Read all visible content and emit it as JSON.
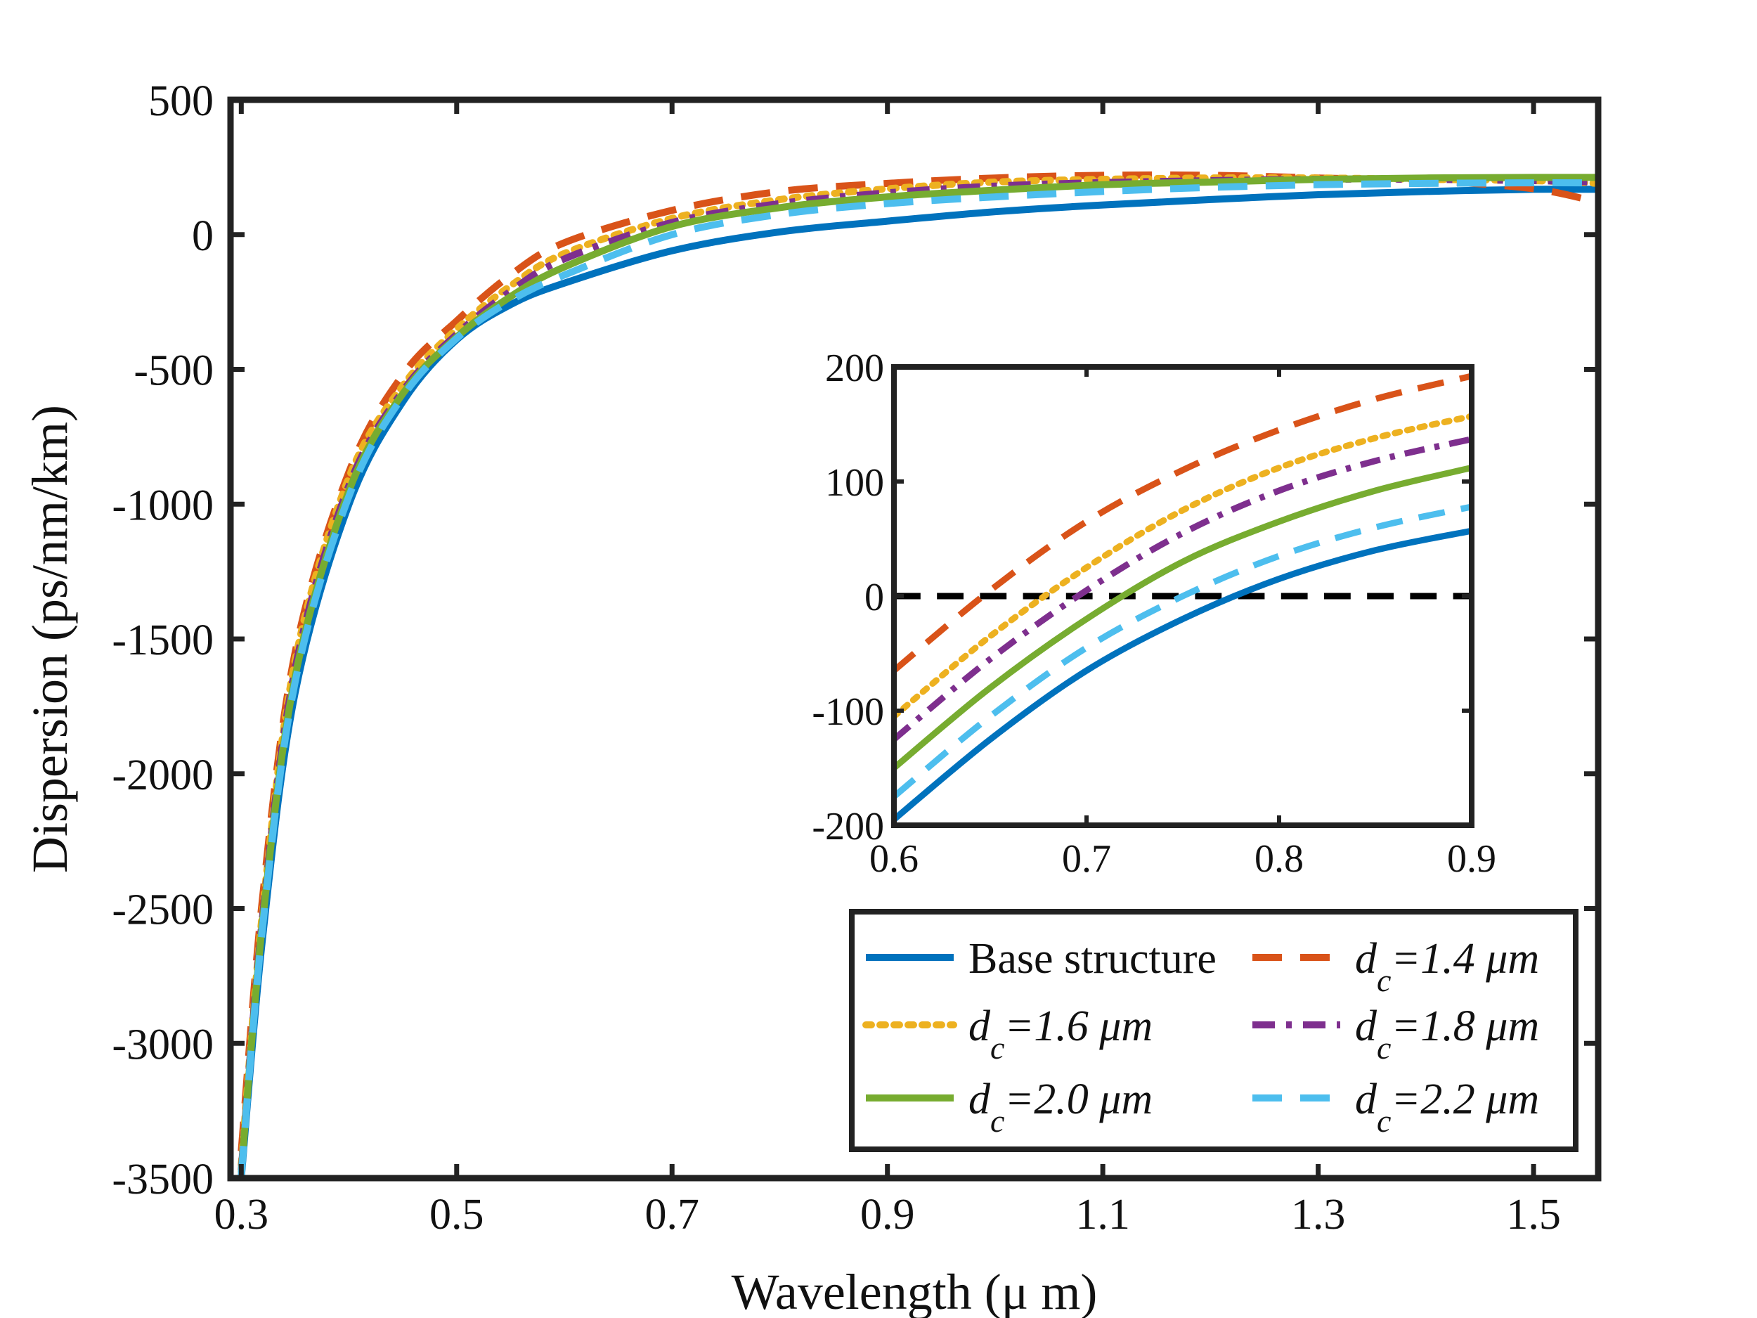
{
  "chart_data": [
    {
      "type": "line",
      "name": "main",
      "xlabel": "Wavelength (μ m)",
      "ylabel": "Dispersion (ps/nm/km)",
      "xlim": [
        0.29,
        1.56
      ],
      "ylim": [
        -3500,
        500
      ],
      "xticks": [
        0.3,
        0.5,
        0.7,
        0.9,
        1.1,
        1.3,
        1.5
      ],
      "xtick_labels": [
        "0.3",
        "0.5",
        "0.7",
        "0.9",
        "1.1",
        "1.3",
        "1.5"
      ],
      "yticks": [
        500,
        0,
        -500,
        -1000,
        -1500,
        -2000,
        -2500,
        -3000,
        -3500
      ],
      "ytick_labels": [
        "500",
        "0",
        "-500",
        "-1000",
        "-1500",
        "-2000",
        "-2500",
        "-3000",
        "-3500"
      ],
      "x": [
        0.3,
        0.32,
        0.35,
        0.4,
        0.45,
        0.5,
        0.55,
        0.6,
        0.7,
        0.8,
        0.9,
        1.0,
        1.1,
        1.2,
        1.3,
        1.4,
        1.5,
        1.56
      ],
      "series": [
        {
          "name": "Base structure",
          "color": "#0072BD",
          "dash": "solid",
          "values": [
            -3500,
            -2600,
            -1700,
            -1000,
            -620,
            -390,
            -260,
            -180,
            -60,
            10,
            50,
            85,
            110,
            130,
            148,
            160,
            168,
            168
          ]
        },
        {
          "name": "d_c=1.4 μm",
          "color": "#D95319",
          "dash": "dashed",
          "values": [
            -3400,
            -2450,
            -1550,
            -880,
            -520,
            -320,
            -150,
            -30,
            90,
            160,
            190,
            210,
            220,
            220,
            210,
            200,
            170,
            120
          ]
        },
        {
          "name": "d_c=1.6 μm",
          "color": "#EDB120",
          "dash": "dotted",
          "values": [
            -3450,
            -2500,
            -1580,
            -900,
            -560,
            -350,
            -190,
            -70,
            60,
            130,
            170,
            195,
            205,
            210,
            210,
            205,
            200,
            190
          ]
        },
        {
          "name": "d_c=1.8 μm",
          "color": "#7E2F8E",
          "dash": "dashdot",
          "values": [
            -3470,
            -2520,
            -1610,
            -930,
            -580,
            -370,
            -210,
            -90,
            45,
            115,
            155,
            180,
            193,
            200,
            205,
            205,
            200,
            195
          ]
        },
        {
          "name": "d_c=2.0 μm",
          "color": "#77AC30",
          "dash": "solid",
          "values": [
            -3480,
            -2540,
            -1640,
            -950,
            -590,
            -380,
            -230,
            -120,
            30,
            100,
            140,
            165,
            185,
            195,
            205,
            210,
            212,
            212
          ]
        },
        {
          "name": "d_c=2.2 μm",
          "color": "#4DBEEE",
          "dash": "dashed",
          "values": [
            -3490,
            -2560,
            -1660,
            -970,
            -600,
            -385,
            -245,
            -150,
            0,
            75,
            115,
            140,
            160,
            175,
            185,
            190,
            192,
            192
          ]
        }
      ],
      "legend": {
        "location": "bottom-right",
        "columns": 2
      }
    },
    {
      "type": "line",
      "name": "inset",
      "xlim": [
        0.6,
        0.9
      ],
      "ylim": [
        -200,
        200
      ],
      "xticks": [
        0.6,
        0.7,
        0.8,
        0.9
      ],
      "xtick_labels": [
        "0.6",
        "0.7",
        "0.8",
        "0.9"
      ],
      "yticks": [
        200,
        100,
        0,
        -100,
        -200
      ],
      "ytick_labels": [
        "200",
        "100",
        "0",
        "-100",
        "-200"
      ],
      "x": [
        0.6,
        0.65,
        0.7,
        0.75,
        0.8,
        0.85,
        0.9
      ],
      "reference_line": {
        "y": 0,
        "color": "#000000",
        "dash": "dashed"
      },
      "series": [
        {
          "name": "Base structure",
          "color": "#0072BD",
          "dash": "solid",
          "values": [
            -195,
            -125,
            -65,
            -20,
            15,
            40,
            57
          ]
        },
        {
          "name": "d_c=1.4 μm",
          "color": "#D95319",
          "dash": "dashed",
          "values": [
            -65,
            5,
            65,
            110,
            145,
            172,
            192
          ]
        },
        {
          "name": "d_c=1.6 μm",
          "color": "#EDB120",
          "dash": "dotted",
          "values": [
            -105,
            -35,
            25,
            75,
            112,
            138,
            157
          ]
        },
        {
          "name": "d_c=1.8 μm",
          "color": "#7E2F8E",
          "dash": "dashdot",
          "values": [
            -125,
            -55,
            5,
            55,
            92,
            118,
            137
          ]
        },
        {
          "name": "d_c=2.0 μm",
          "color": "#77AC30",
          "dash": "solid",
          "values": [
            -150,
            -80,
            -20,
            30,
            65,
            92,
            112
          ]
        },
        {
          "name": "d_c=2.2 μm",
          "color": "#4DBEEE",
          "dash": "dashed",
          "values": [
            -175,
            -105,
            -45,
            0,
            35,
            60,
            78
          ]
        }
      ]
    }
  ],
  "legend": {
    "items": [
      {
        "prefix": "",
        "subscript": "",
        "text": "Base structure",
        "italic": false,
        "color": "#0072BD",
        "dash": "solid"
      },
      {
        "prefix": "d",
        "subscript": "c",
        "text": "=1.4 μm",
        "italic": true,
        "color": "#D95319",
        "dash": "dashed"
      },
      {
        "prefix": "d",
        "subscript": "c",
        "text": "=1.6 μm",
        "italic": true,
        "color": "#EDB120",
        "dash": "dotted"
      },
      {
        "prefix": "d",
        "subscript": "c",
        "text": "=1.8 μm",
        "italic": true,
        "color": "#7E2F8E",
        "dash": "dashdot"
      },
      {
        "prefix": "d",
        "subscript": "c",
        "text": "=2.0 μm",
        "italic": true,
        "color": "#77AC30",
        "dash": "solid"
      },
      {
        "prefix": "d",
        "subscript": "c",
        "text": "=2.2 μm",
        "italic": true,
        "color": "#4DBEEE",
        "dash": "dashed"
      }
    ]
  }
}
